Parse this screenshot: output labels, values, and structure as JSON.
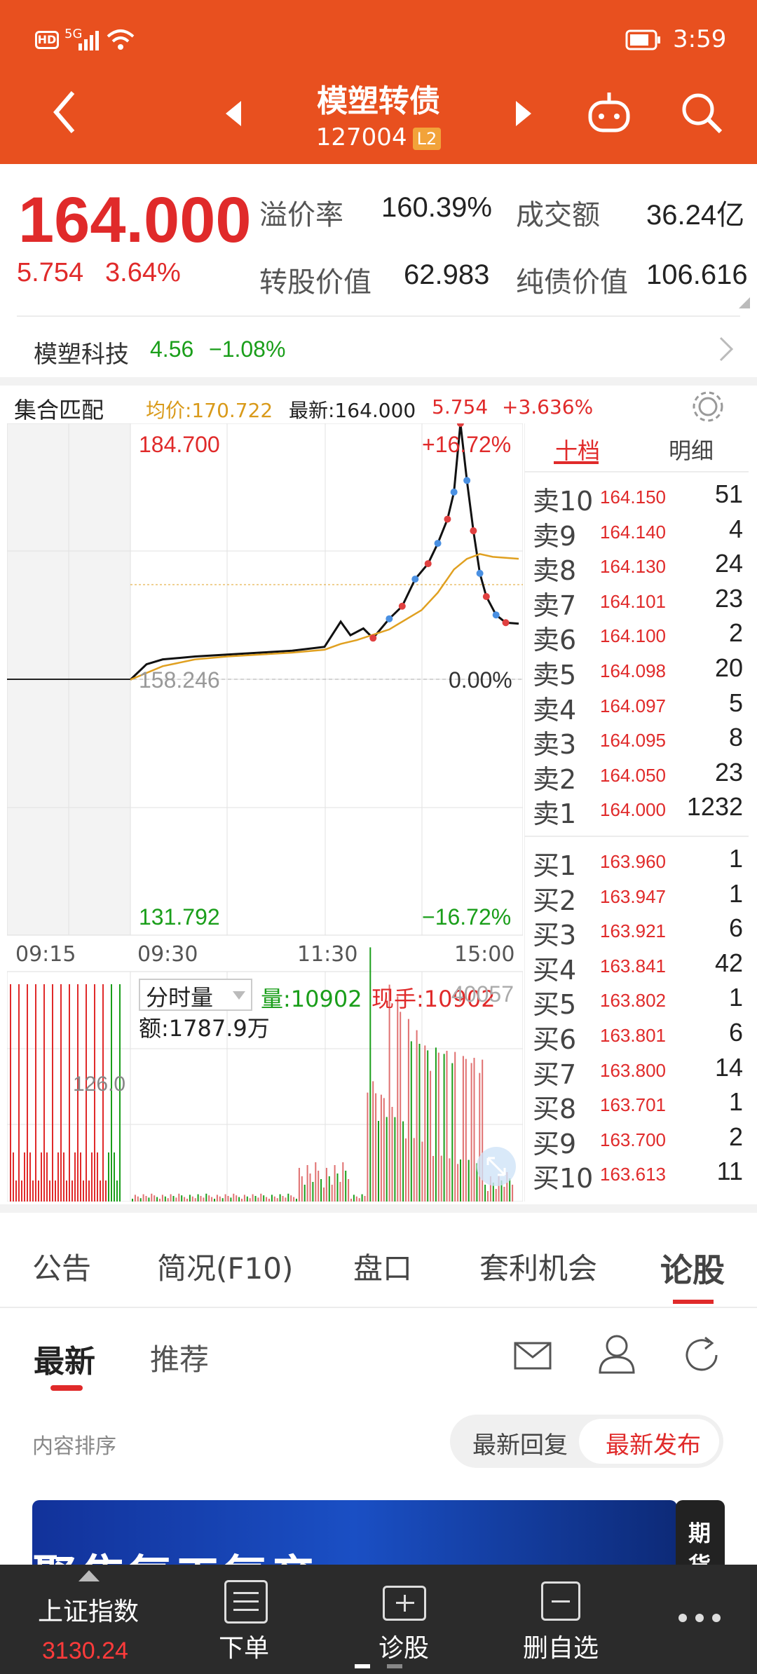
{
  "status_bar": {
    "time": "3:59",
    "hd": "HD",
    "net": "5G"
  },
  "header": {
    "title": "模塑转债",
    "code": "127004",
    "level": "L2"
  },
  "quote": {
    "price": "164.000",
    "change": "5.754",
    "change_pct": "3.64%",
    "premium_label": "溢价率",
    "premium_value": "160.39%",
    "turnover_label": "成交额",
    "turnover_value": "36.24亿",
    "conv_label": "转股价值",
    "conv_value": "62.983",
    "bond_label": "纯债价值",
    "bond_value": "106.616"
  },
  "underlying": {
    "name": "模塑科技",
    "price": "4.56",
    "change": "−1.08%"
  },
  "chart_header": {
    "mode": "集合匹配",
    "avg_label": "均价:170.722",
    "latest_label": "最新:164.000",
    "change": "5.754",
    "change_pct": "+3.636%"
  },
  "chart_labels": {
    "high": "184.700",
    "low": "131.792",
    "mid": "158.246",
    "up_pct": "+16.72%",
    "zero_pct": "0.00%",
    "down_pct": "−16.72%",
    "t0": "09:15",
    "t1": "09:30",
    "t2": "11:30",
    "t3": "15:00",
    "vol_mode": "分时量",
    "vol": "量:10902",
    "hand": "现手:10902",
    "amount": "额:1787.9万",
    "vol_scale": "126.0",
    "vol_right": "40057"
  },
  "chart_data": {
    "type": "line",
    "title": "",
    "x_ticks": [
      "09:15",
      "09:30",
      "11:30",
      "15:00"
    ],
    "ylim": [
      131.792,
      184.7
    ],
    "y_ticks": [
      184.7,
      158.246,
      131.792
    ],
    "pct_ticks": [
      "+16.72%",
      "0.00%",
      "−16.72%"
    ],
    "series": [
      {
        "name": "最新",
        "color": "#111111",
        "x": [
          0,
          5,
          10,
          20,
          30,
          40,
          50,
          60,
          65,
          68,
          72,
          75,
          80,
          84,
          88,
          92,
          95,
          98,
          100,
          102,
          104,
          106,
          108,
          110,
          113,
          116,
          120
        ],
        "y": [
          158.2,
          159.8,
          160.3,
          160.6,
          160.8,
          161.0,
          161.2,
          161.6,
          164.2,
          162.8,
          163.5,
          162.5,
          164.5,
          165.8,
          168.6,
          170.2,
          172.3,
          174.8,
          177.6,
          184.7,
          178.8,
          173.6,
          169.2,
          166.8,
          164.9,
          164.1,
          164.0
        ]
      },
      {
        "name": "均价",
        "color": "#e0a020",
        "x": [
          0,
          10,
          20,
          30,
          40,
          50,
          60,
          65,
          70,
          80,
          90,
          95,
          100,
          104,
          108,
          112,
          120
        ],
        "y": [
          158.2,
          159.6,
          160.3,
          160.6,
          160.8,
          161.0,
          161.3,
          161.9,
          162.3,
          163.4,
          165.4,
          167.2,
          169.6,
          170.7,
          171.2,
          170.9,
          170.7
        ]
      }
    ]
  },
  "order_book": {
    "tab_active": "十档",
    "tab_other": "明细",
    "asks": [
      {
        "label": "卖10",
        "price": "164.150",
        "vol": "51"
      },
      {
        "label": "卖9",
        "price": "164.140",
        "vol": "4"
      },
      {
        "label": "卖8",
        "price": "164.130",
        "vol": "24"
      },
      {
        "label": "卖7",
        "price": "164.101",
        "vol": "23"
      },
      {
        "label": "卖6",
        "price": "164.100",
        "vol": "2"
      },
      {
        "label": "卖5",
        "price": "164.098",
        "vol": "20"
      },
      {
        "label": "卖4",
        "price": "164.097",
        "vol": "5"
      },
      {
        "label": "卖3",
        "price": "164.095",
        "vol": "8"
      },
      {
        "label": "卖2",
        "price": "164.050",
        "vol": "23"
      },
      {
        "label": "卖1",
        "price": "164.000",
        "vol": "1232"
      }
    ],
    "bids": [
      {
        "label": "买1",
        "price": "163.960",
        "vol": "1"
      },
      {
        "label": "买2",
        "price": "163.947",
        "vol": "1"
      },
      {
        "label": "买3",
        "price": "163.921",
        "vol": "6"
      },
      {
        "label": "买4",
        "price": "163.841",
        "vol": "42"
      },
      {
        "label": "买5",
        "price": "163.802",
        "vol": "1"
      },
      {
        "label": "买6",
        "price": "163.801",
        "vol": "6"
      },
      {
        "label": "买7",
        "price": "163.800",
        "vol": "14"
      },
      {
        "label": "买8",
        "price": "163.701",
        "vol": "1"
      },
      {
        "label": "买9",
        "price": "163.700",
        "vol": "2"
      },
      {
        "label": "买10",
        "price": "163.613",
        "vol": "11"
      }
    ]
  },
  "tabs": [
    "公告",
    "简况(F10)",
    "盘口",
    "套利机会",
    "论股"
  ],
  "sub_tabs": {
    "latest": "最新",
    "recommend": "推荐"
  },
  "sort": {
    "label": "内容排序",
    "opt1": "最新回复",
    "opt2": "最新发布"
  },
  "banner": {
    "text": "聚焦复工复产",
    "side": "期货"
  },
  "bottom_nav": {
    "index_name": "上证指数",
    "index_value": "3130.24",
    "order": "下单",
    "diagnose": "诊股",
    "remove": "删自选"
  },
  "colors": {
    "brand": "#e8501f",
    "up": "#e02a2a",
    "down": "#1a9e1a",
    "avg": "#e0a020"
  }
}
